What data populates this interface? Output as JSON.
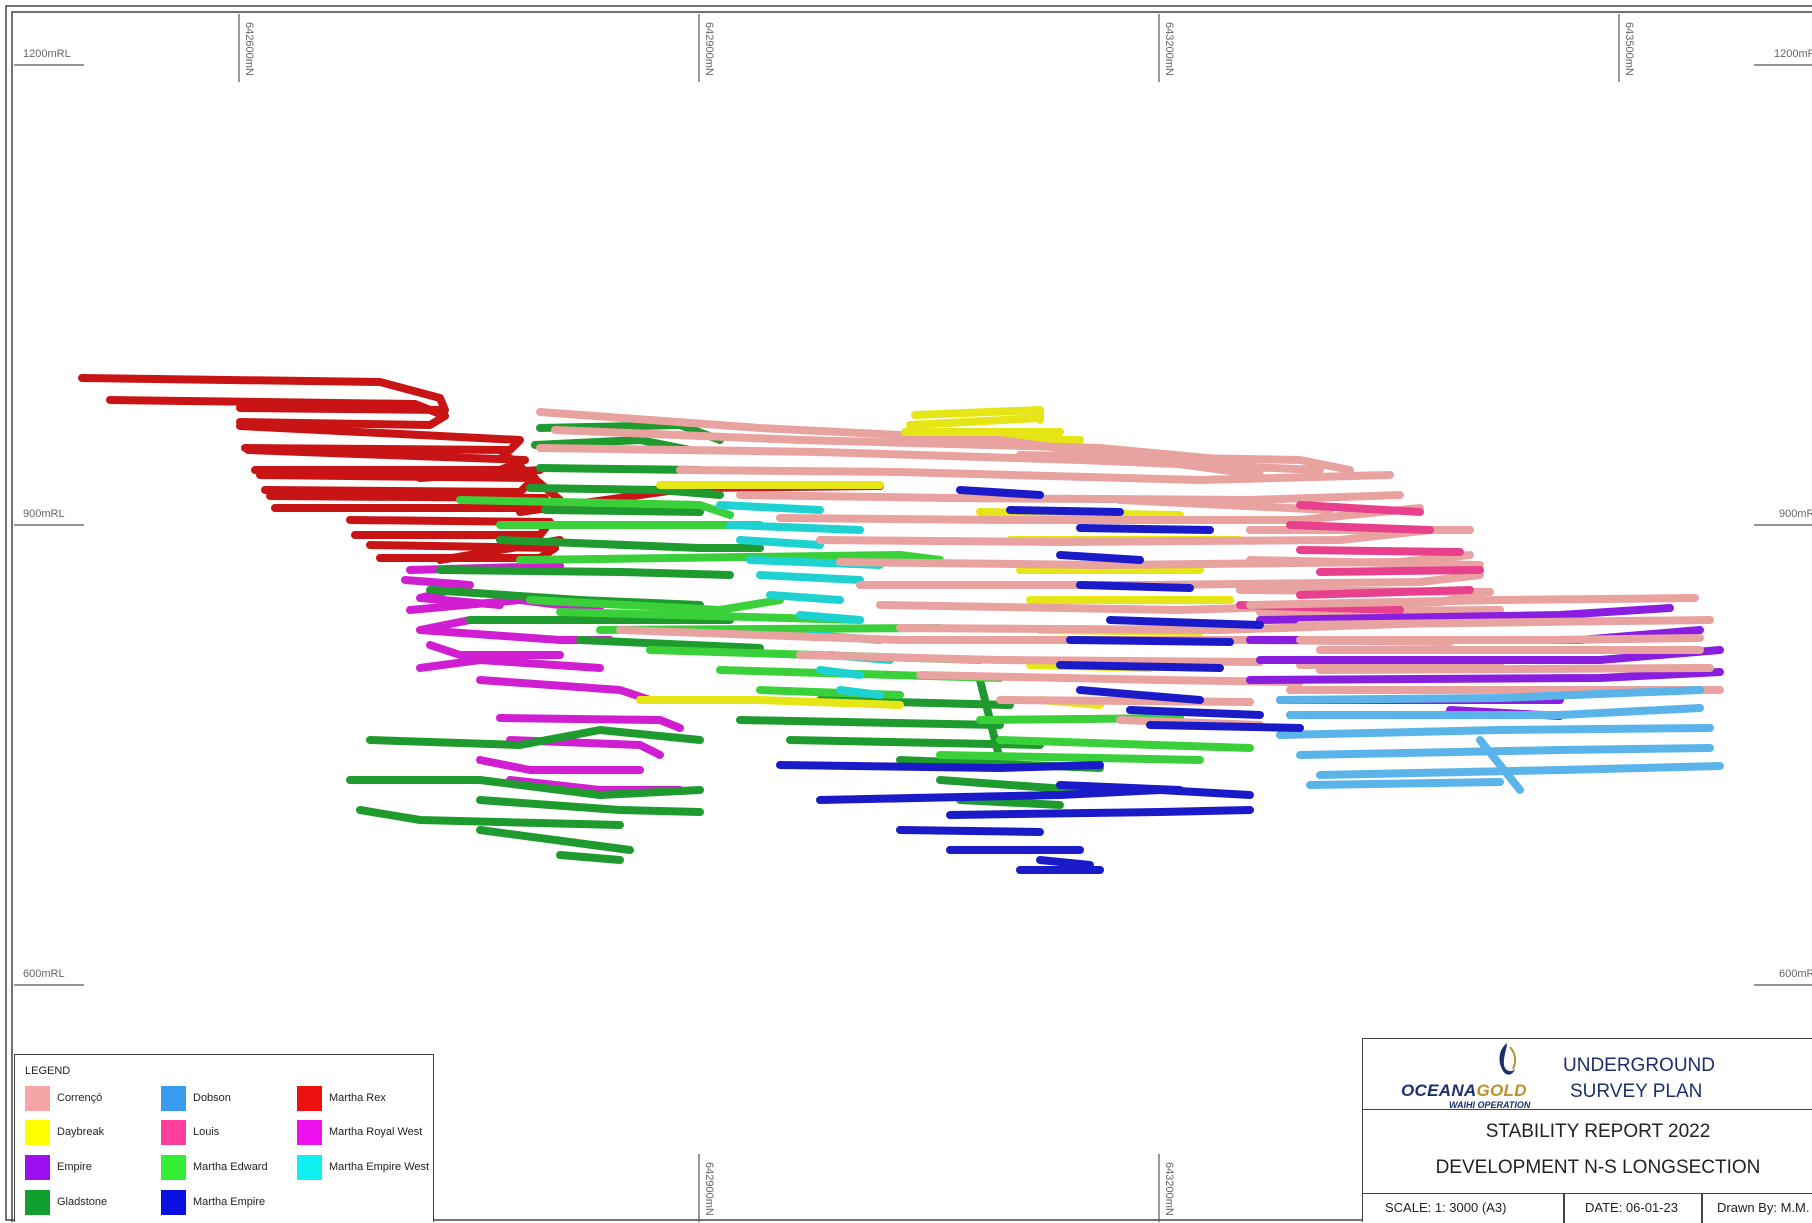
{
  "drawing": {
    "northings_top": [
      "642600mN",
      "642900mN",
      "643200mN",
      "643500mN"
    ],
    "northings_bottom": [
      "642900mN",
      "643200mN"
    ],
    "elevations_left": [
      "1200mRL",
      "900mRL",
      "600mRL"
    ],
    "elevations_right": [
      "1200mRL",
      "900mRL",
      "600mRL"
    ]
  },
  "legend": {
    "title": "LEGEND",
    "items": [
      {
        "label": "Corrençó",
        "color": "#f4a6a6"
      },
      {
        "label": "Daybreak",
        "color": "#ffff00"
      },
      {
        "label": "Empire",
        "color": "#9a10f0"
      },
      {
        "label": "Gladstone",
        "color": "#10a030"
      },
      {
        "label": "Dobson",
        "color": "#3a9cf0"
      },
      {
        "label": "Louis",
        "color": "#ff3d9a"
      },
      {
        "label": "Martha Edward",
        "color": "#33ee33"
      },
      {
        "label": "Martha Empire",
        "color": "#0a10e0"
      },
      {
        "label": "Martha Rex",
        "color": "#ee1111"
      },
      {
        "label": "Martha Royal West",
        "color": "#ee10ee"
      },
      {
        "label": "Martha Empire West",
        "color": "#11f0f0"
      }
    ]
  },
  "title_block": {
    "logo_main": "OCEANA",
    "logo_gold": "GOLD",
    "logo_sub": "WAIHI OPERATION",
    "plan_line1": "UNDERGROUND",
    "plan_line2": "SURVEY PLAN",
    "report": "STABILITY REPORT 2022",
    "section": "DEVELOPMENT N-S LONGSECTION",
    "scale": "SCALE:   1:  3000   (A3)",
    "date": "DATE:  06-01-23",
    "drawn_by": "Drawn By:  M.M."
  },
  "colors": {
    "martha_rex": "#c81414",
    "martha_royal_west": "#d21ed2",
    "gladstone": "#1e9a2e",
    "martha_edward": "#3ad03a",
    "correnso": "#e8a2a0",
    "daybreak": "#e6e616",
    "empire": "#8a1ee0",
    "louis": "#e8408c",
    "dobson": "#5ab4ea",
    "martha_empire": "#1a1ac8",
    "martha_empire_west": "#1ed2d2"
  }
}
